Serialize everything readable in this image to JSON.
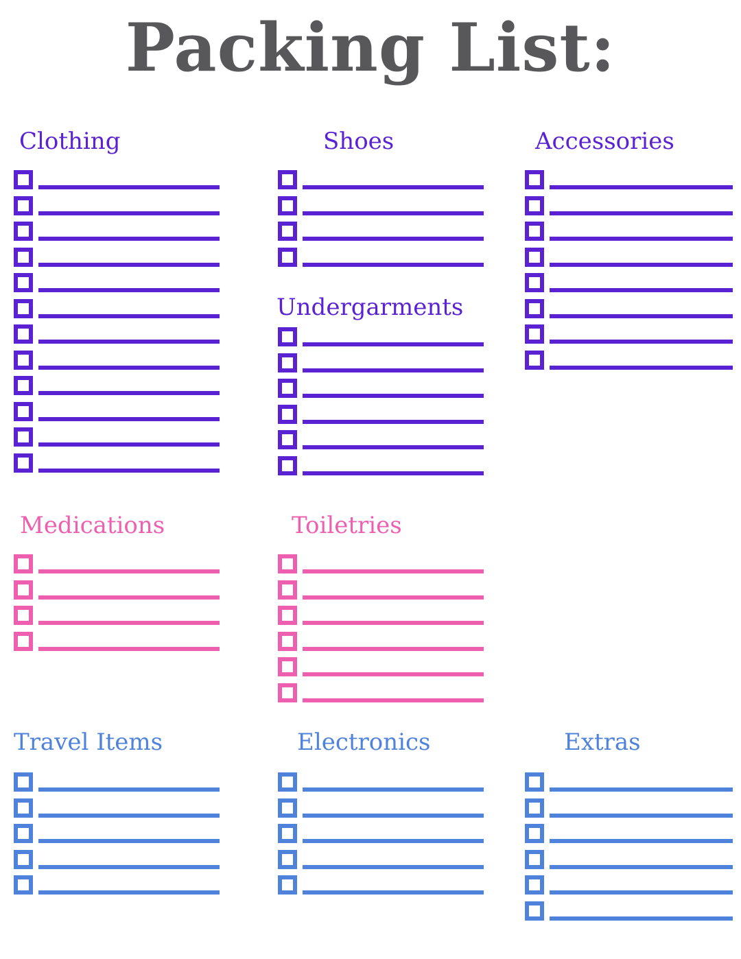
{
  "title": "Packing List:",
  "colors": {
    "title_text": "#58585a",
    "purple": "#5a22d3",
    "pink": "#ee5fb0",
    "blue": "#4f82db",
    "background": "#ffffff"
  },
  "sections": [
    {
      "id": "clothing",
      "label": "Clothing",
      "color": "purple",
      "checkbox_count": 12,
      "checked_count": 0
    },
    {
      "id": "shoes",
      "label": "Shoes",
      "color": "purple",
      "checkbox_count": 4,
      "checked_count": 0
    },
    {
      "id": "accessories",
      "label": "Accessories",
      "color": "purple",
      "checkbox_count": 8,
      "checked_count": 0
    },
    {
      "id": "undergarments",
      "label": "Undergarments",
      "color": "purple",
      "checkbox_count": 6,
      "checked_count": 0
    },
    {
      "id": "medications",
      "label": "Medications",
      "color": "pink",
      "checkbox_count": 4,
      "checked_count": 0
    },
    {
      "id": "toiletries",
      "label": "Toiletries",
      "color": "pink",
      "checkbox_count": 6,
      "checked_count": 0
    },
    {
      "id": "travel-items",
      "label": "Travel Items",
      "color": "blue",
      "checkbox_count": 5,
      "checked_count": 0
    },
    {
      "id": "electronics",
      "label": "Electronics",
      "color": "blue",
      "checkbox_count": 5,
      "checked_count": 0
    },
    {
      "id": "extras",
      "label": "Extras",
      "color": "blue",
      "checkbox_count": 6,
      "checked_count": 0
    }
  ]
}
